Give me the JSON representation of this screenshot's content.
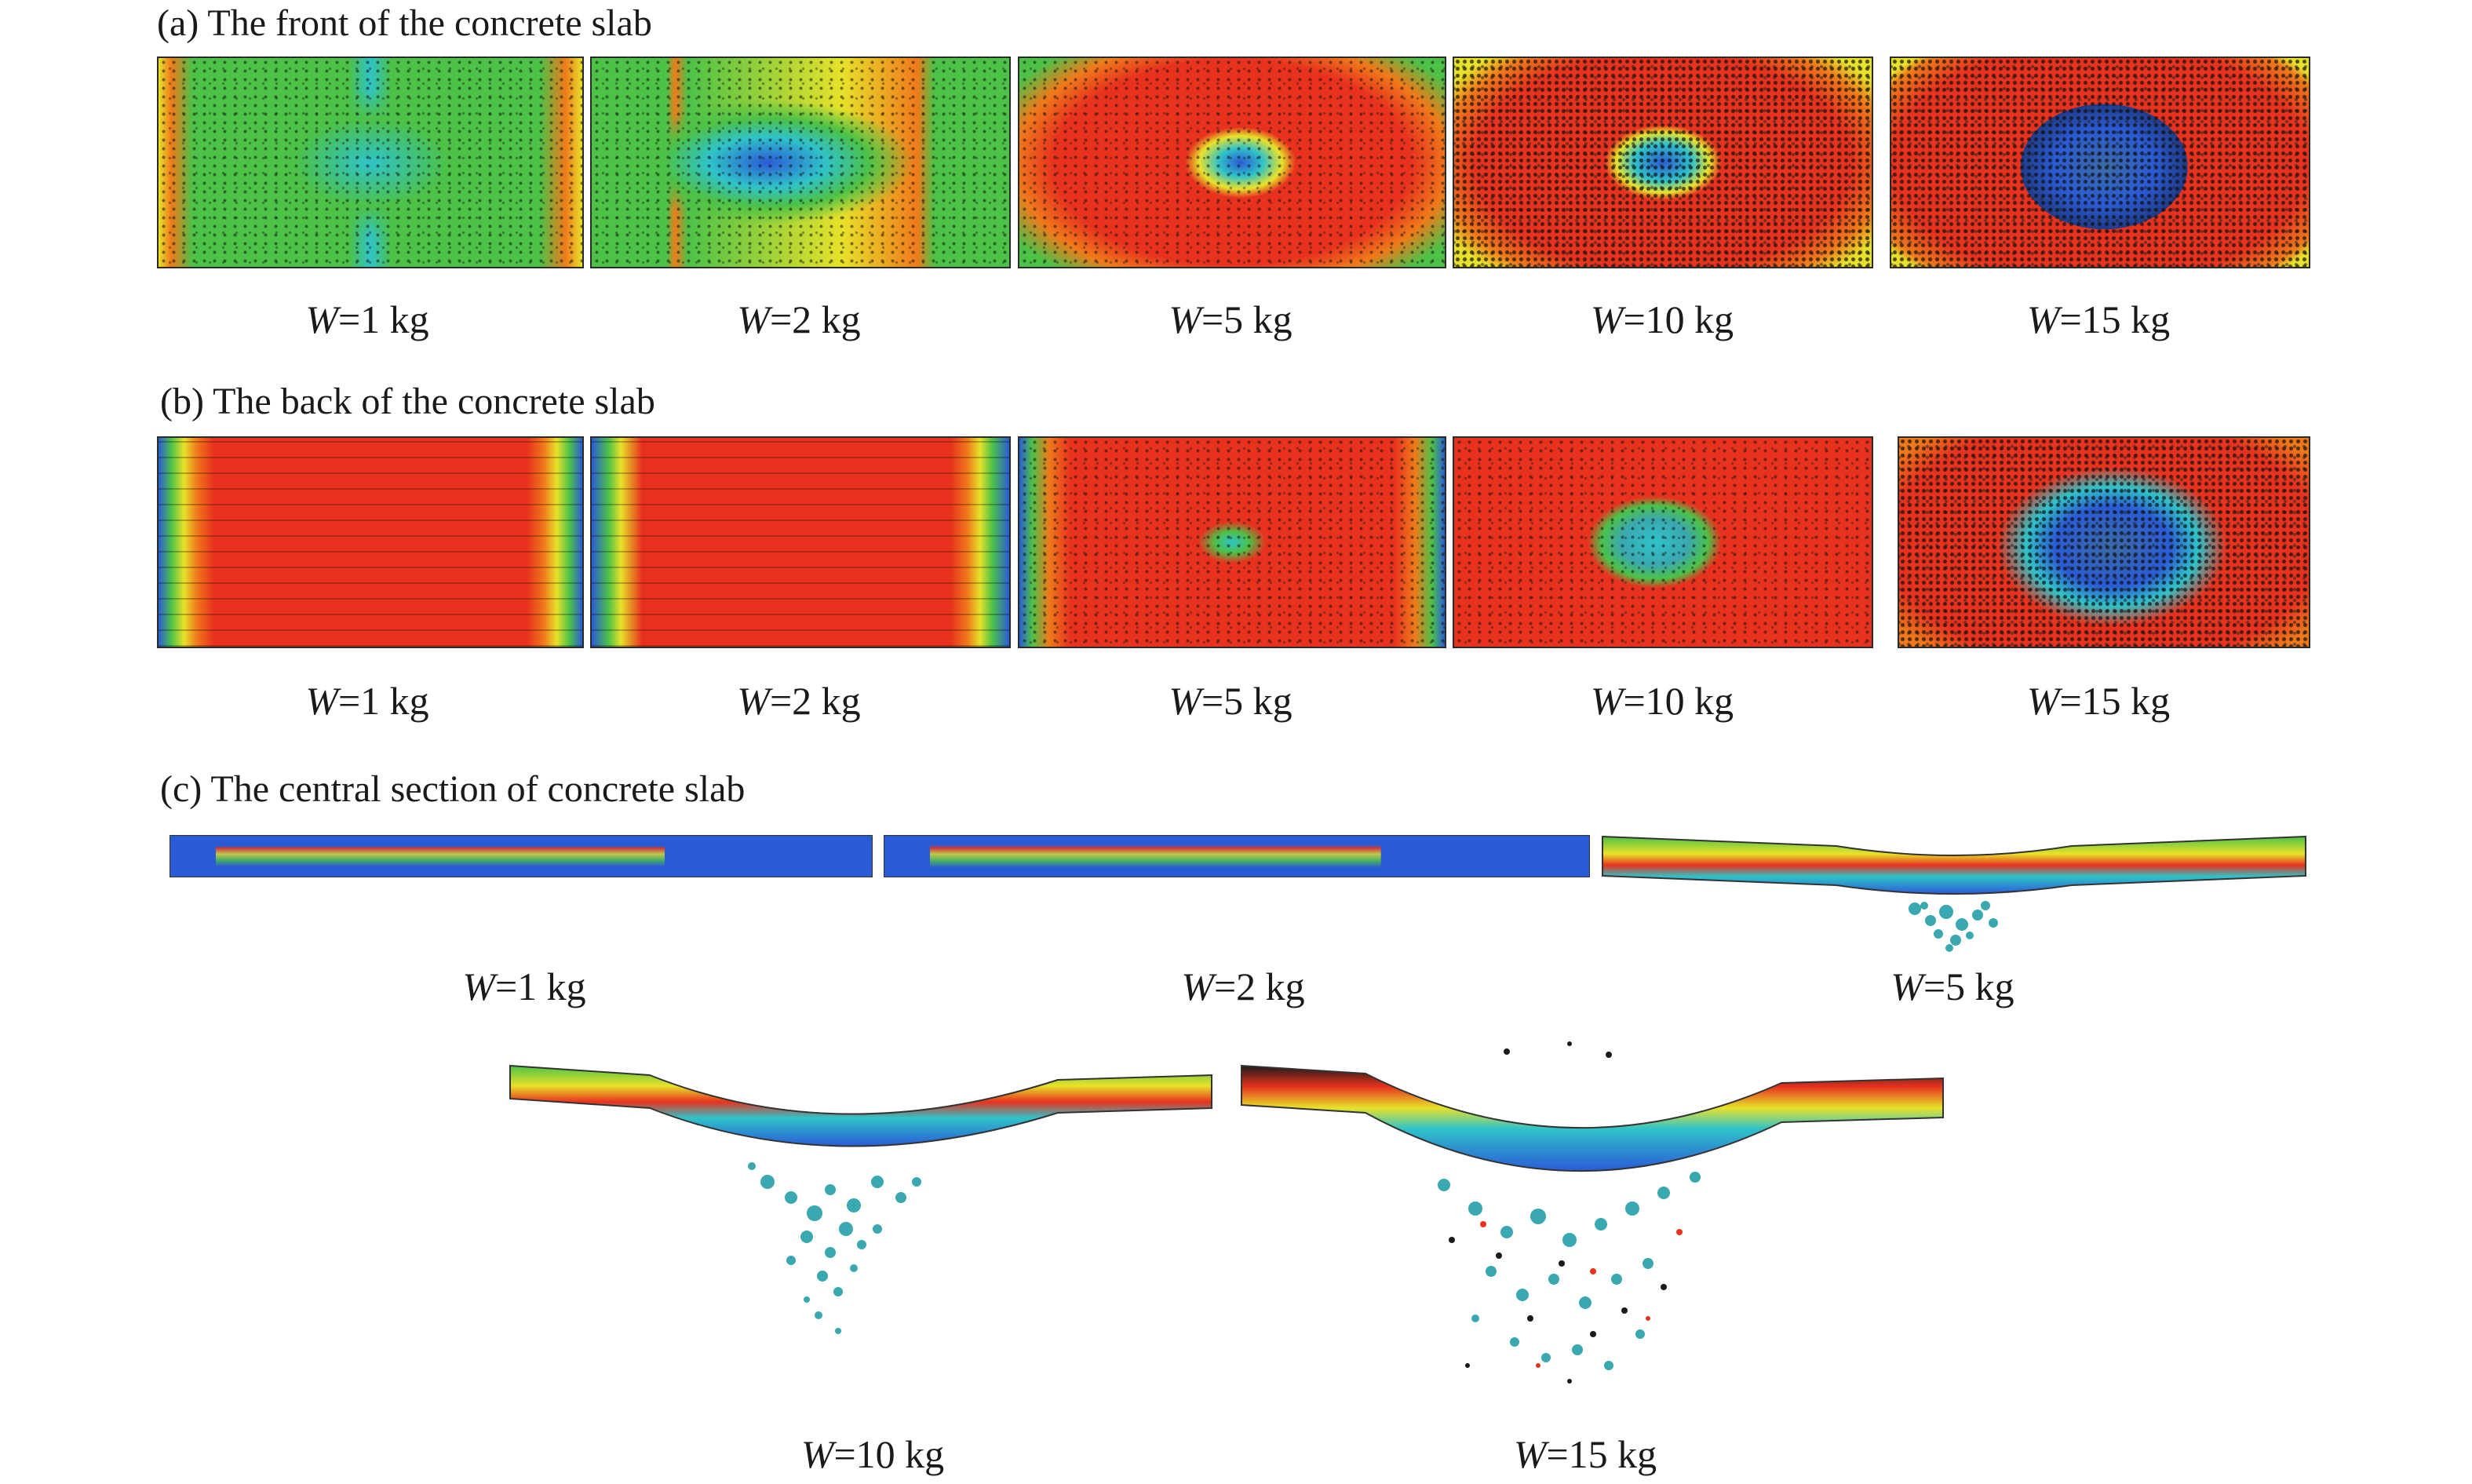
{
  "sections": {
    "front": {
      "title": "(a) The front of the concrete slab"
    },
    "back": {
      "title": "(b) The back of the concrete slab"
    },
    "central": {
      "title": "(c) The central section of concrete slab"
    }
  },
  "captions": {
    "w_prefix": "W",
    "values": [
      "=1 kg",
      "=2 kg",
      "=5 kg",
      "=10 kg",
      "=15 kg"
    ]
  },
  "colors": {
    "red": "#e8321e",
    "orange": "#f07a1a",
    "yellow": "#e8e22a",
    "green": "#4cc247",
    "cyan": "#2fc3c9",
    "blue": "#2a5bd7",
    "dark_blue": "#1f3c8a"
  }
}
